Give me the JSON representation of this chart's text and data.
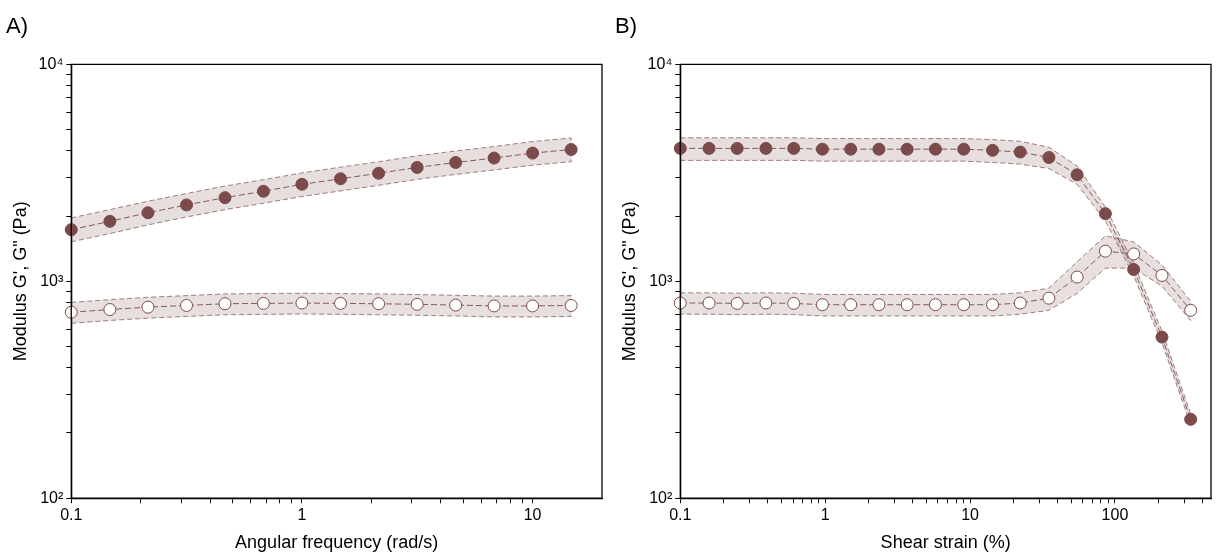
{
  "chart_data": [
    {
      "type": "line",
      "title": "A)",
      "xlabel": "Angular frequency (rad/s)",
      "ylabel": "Modulus G', G\" (Pa)",
      "log": "xy",
      "grid": false,
      "marker": "circle",
      "line_style": "dashed",
      "xlim": [
        0.1,
        20
      ],
      "ylim": [
        100,
        10000
      ],
      "xticks": [
        0.1,
        {
          "value": 0.2,
          "label": null
        },
        {
          "value": 0.3,
          "label": null
        },
        {
          "value": 0.4,
          "label": null
        },
        {
          "value": 0.5,
          "label": null
        },
        {
          "value": 0.6,
          "label": null
        },
        {
          "value": 0.7,
          "label": null
        },
        {
          "value": 0.8,
          "label": null
        },
        {
          "value": 0.9,
          "label": null
        },
        1,
        {
          "value": 2,
          "label": null
        },
        {
          "value": 3,
          "label": null
        },
        {
          "value": 4,
          "label": null
        },
        {
          "value": 5,
          "label": null
        },
        {
          "value": 6,
          "label": null
        },
        {
          "value": 7,
          "label": null
        },
        {
          "value": 8,
          "label": null
        },
        {
          "value": 9,
          "label": null
        },
        10
      ],
      "yticks": [
        {
          "value": 100,
          "label": "10²"
        },
        {
          "value": 200,
          "label": null
        },
        {
          "value": 300,
          "label": null
        },
        {
          "value": 400,
          "label": null
        },
        {
          "value": 500,
          "label": null
        },
        {
          "value": 600,
          "label": null
        },
        {
          "value": 700,
          "label": null
        },
        {
          "value": 800,
          "label": null
        },
        {
          "value": 900,
          "label": null
        },
        {
          "value": 1000,
          "label": "10³"
        },
        {
          "value": 2000,
          "label": null
        },
        {
          "value": 3000,
          "label": null
        },
        {
          "value": 4000,
          "label": null
        },
        {
          "value": 5000,
          "label": null
        },
        {
          "value": 6000,
          "label": null
        },
        {
          "value": 7000,
          "label": null
        },
        {
          "value": 8000,
          "label": null
        },
        {
          "value": 9000,
          "label": null
        },
        {
          "value": 10000,
          "label": "10⁴"
        }
      ],
      "x": [
        0.1,
        0.147,
        0.215,
        0.316,
        0.464,
        0.681,
        1,
        1.47,
        2.15,
        3.16,
        4.64,
        6.81,
        10,
        14.7
      ],
      "series": [
        {
          "color": "#7b4a4a",
          "values": [
            1730,
            1890,
            2070,
            2250,
            2430,
            2600,
            2800,
            2970,
            3150,
            3350,
            3530,
            3700,
            3900,
            4050
          ],
          "lower": [
            1520,
            1660,
            1820,
            1980,
            2140,
            2290,
            2460,
            2610,
            2770,
            2950,
            3110,
            3260,
            3430,
            3560
          ],
          "upper": [
            1960,
            2140,
            2340,
            2540,
            2750,
            2940,
            3160,
            3360,
            3560,
            3790,
            3990,
            4180,
            4410,
            4580
          ]
        },
        {
          "color": "#7d4b4c",
          "colors": [
            "#ffffff",
            "#ffffff",
            "#ffffff",
            "#ffffff",
            "#ffffff",
            "#ffffff",
            "#ffffff",
            "#ffffff",
            "#ffffff",
            "#ffffff",
            "#ffffff",
            "#ffffff",
            "#ffffff",
            "#ffffff"
          ],
          "values": [
            720,
            741,
            760,
            774,
            788,
            791,
            794,
            791,
            788,
            783,
            777,
            770,
            770,
            774
          ],
          "lower": [
            640,
            660,
            676,
            689,
            701,
            704,
            707,
            704,
            701,
            697,
            692,
            685,
            685,
            689
          ],
          "upper": [
            800,
            823,
            844,
            859,
            875,
            878,
            881,
            878,
            875,
            869,
            862,
            855,
            855,
            859
          ]
        }
      ]
    },
    {
      "type": "line",
      "title": "B)",
      "xlabel": "Shear strain (%)",
      "ylabel": "Modulus G', G\" (Pa)",
      "log": "xy",
      "grid": false,
      "marker": "circle",
      "line_style": "dashed",
      "xlim": [
        0.1,
        460
      ],
      "ylim": [
        100,
        10000
      ],
      "xticks": [
        0.1,
        {
          "value": 0.2,
          "label": null
        },
        {
          "value": 0.3,
          "label": null
        },
        {
          "value": 0.4,
          "label": null
        },
        {
          "value": 0.5,
          "label": null
        },
        {
          "value": 0.6,
          "label": null
        },
        {
          "value": 0.7,
          "label": null
        },
        {
          "value": 0.8,
          "label": null
        },
        {
          "value": 0.9,
          "label": null
        },
        1,
        {
          "value": 2,
          "label": null
        },
        {
          "value": 3,
          "label": null
        },
        {
          "value": 4,
          "label": null
        },
        {
          "value": 5,
          "label": null
        },
        {
          "value": 6,
          "label": null
        },
        {
          "value": 7,
          "label": null
        },
        {
          "value": 8,
          "label": null
        },
        {
          "value": 9,
          "label": null
        },
        10,
        {
          "value": 20,
          "label": null
        },
        {
          "value": 30,
          "label": null
        },
        {
          "value": 40,
          "label": null
        },
        {
          "value": 50,
          "label": null
        },
        {
          "value": 60,
          "label": null
        },
        {
          "value": 70,
          "label": null
        },
        {
          "value": 80,
          "label": null
        },
        {
          "value": 90,
          "label": null
        },
        100,
        {
          "value": 200,
          "label": null
        },
        {
          "value": 300,
          "label": null
        },
        {
          "value": 400,
          "label": null
        }
      ],
      "yticks": [
        {
          "value": 100,
          "label": "10²"
        },
        {
          "value": 200,
          "label": null
        },
        {
          "value": 300,
          "label": null
        },
        {
          "value": 400,
          "label": null
        },
        {
          "value": 500,
          "label": null
        },
        {
          "value": 600,
          "label": null
        },
        {
          "value": 700,
          "label": null
        },
        {
          "value": 800,
          "label": null
        },
        {
          "value": 900,
          "label": null
        },
        {
          "value": 1000,
          "label": "10³"
        },
        {
          "value": 2000,
          "label": null
        },
        {
          "value": 3000,
          "label": null
        },
        {
          "value": 4000,
          "label": null
        },
        {
          "value": 5000,
          "label": null
        },
        {
          "value": 6000,
          "label": null
        },
        {
          "value": 7000,
          "label": null
        },
        {
          "value": 8000,
          "label": null
        },
        {
          "value": 9000,
          "label": null
        },
        {
          "value": 10000,
          "label": "10⁴"
        }
      ],
      "x": [
        0.1,
        0.158,
        0.247,
        0.39,
        0.607,
        0.957,
        1.5,
        2.35,
        3.68,
        5.77,
        9.04,
        14.3,
        22.2,
        35,
        54.8,
        85.9,
        134.6,
        211,
        333
      ],
      "series": [
        {
          "color": "#7b4a4a",
          "values": [
            4100,
            4100,
            4100,
            4100,
            4100,
            4065,
            4065,
            4065,
            4065,
            4065,
            4065,
            4016,
            3945,
            3721,
            3099,
            2051,
            1133,
            553,
            231
          ],
          "lower": [
            3610,
            3610,
            3610,
            3610,
            3610,
            3580,
            3580,
            3580,
            3580,
            3580,
            3580,
            3530,
            3470,
            3310,
            2800,
            1900,
            1060,
            520,
            218
          ],
          "upper": [
            4590,
            4590,
            4590,
            4590,
            4590,
            4550,
            4550,
            4550,
            4550,
            4550,
            4550,
            4500,
            4420,
            4150,
            3400,
            2200,
            1210,
            590,
            245
          ]
        },
        {
          "color": "#7d4b4c",
          "colors": [
            "#ffffff",
            "#ffffff",
            "#ffffff",
            "#ffffff",
            "#ffffff",
            "#ffffff",
            "#ffffff",
            "#ffffff",
            "#ffffff",
            "#ffffff",
            "#ffffff",
            "#ffffff",
            "#ffffff",
            "#ffffff",
            "#ffffff",
            "#ffffff",
            "#ffffff",
            "#ffffff",
            "#ffffff"
          ],
          "values": [
            794,
            794,
            791,
            794,
            791,
            780,
            780,
            780,
            780,
            780,
            780,
            780,
            794,
            836,
            1046,
            1377,
            1337,
            1064,
            735
          ],
          "lower": [
            705,
            705,
            702,
            705,
            702,
            692,
            692,
            692,
            692,
            692,
            692,
            692,
            705,
            735,
            880,
            1150,
            1150,
            950,
            660
          ],
          "upper": [
            885,
            885,
            882,
            885,
            882,
            870,
            870,
            870,
            870,
            870,
            870,
            870,
            885,
            930,
            1230,
            1620,
            1520,
            1190,
            810
          ]
        }
      ]
    }
  ]
}
